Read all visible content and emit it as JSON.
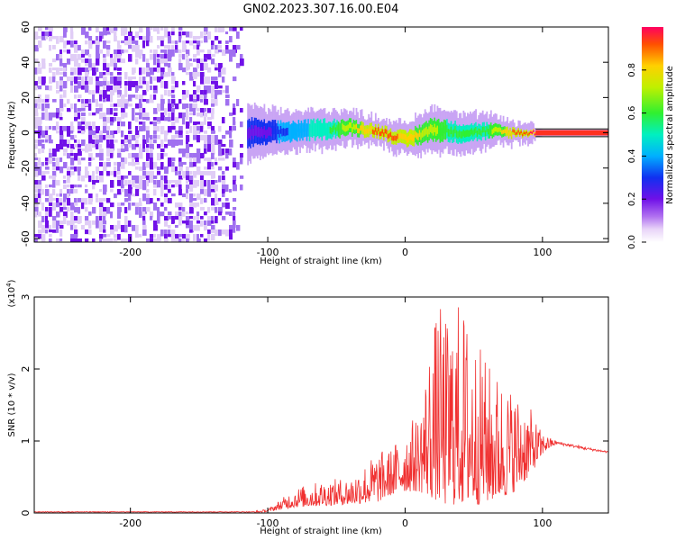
{
  "title": "GN02.2023.307.16.00.E04",
  "colors": {
    "spectrogram_scale": [
      "#ffffff",
      "#e8d4f8",
      "#a070f0",
      "#7010e8",
      "#1030f0",
      "#00b0ff",
      "#00f0c0",
      "#30f030",
      "#c0f000",
      "#ffd000",
      "#ff5000",
      "#ff0060"
    ],
    "snr_line": "#f03030"
  },
  "chart_data": [
    {
      "type": "heatmap",
      "xlabel": "Height of straight line (km)",
      "ylabel": "Frequency (Hz)",
      "xlim": [
        -270,
        148
      ],
      "ylim": [
        -62,
        60
      ],
      "xticks": [
        -200,
        -100,
        0,
        100
      ],
      "yticks": [
        60,
        40,
        20,
        0,
        -20,
        -40,
        -60
      ],
      "colorbar": {
        "label": "Normalized spectral amplitude",
        "range": [
          0.0,
          1.0
        ],
        "ticks": [
          "0.0",
          "0.2",
          "0.4",
          "0.6",
          "0.8"
        ]
      },
      "ridge": {
        "x": [
          -115,
          -100,
          -80,
          -60,
          -40,
          -20,
          0,
          20,
          40,
          60,
          80,
          100,
          148
        ],
        "y_center_hz": [
          0,
          0,
          1,
          2,
          3,
          1,
          -4,
          2,
          0,
          1,
          0,
          0,
          0
        ],
        "width_hz": [
          8,
          6,
          5,
          5,
          4,
          3,
          4,
          6,
          5,
          4,
          2,
          1,
          1
        ],
        "amplitude": [
          0.25,
          0.3,
          0.45,
          0.55,
          0.75,
          0.9,
          0.85,
          0.7,
          0.6,
          0.65,
          0.9,
          1.0,
          1.0
        ]
      },
      "noise_region": {
        "x": [
          -270,
          -115
        ],
        "amplitude": 0.1
      }
    },
    {
      "type": "line",
      "xlabel": "Height of straight line (km)",
      "ylabel": "SNR (10 * v/v)",
      "multiplier_label": "(x10",
      "multiplier_exp": "4",
      "multiplier_close": ")",
      "xlim": [
        -270,
        148
      ],
      "ylim": [
        0,
        3
      ],
      "xticks": [
        -200,
        -100,
        0,
        100
      ],
      "yticks": [
        0,
        1,
        2,
        3
      ],
      "envelope": {
        "x": [
          -270,
          -110,
          -100,
          -90,
          -80,
          -60,
          -40,
          -20,
          -10,
          0,
          10,
          20,
          25,
          30,
          40,
          50,
          60,
          70,
          80,
          90,
          100,
          110,
          120,
          130,
          148
        ],
        "y_min": [
          0,
          0,
          0.02,
          0.05,
          0.08,
          0.1,
          0.12,
          0.15,
          0.25,
          0.3,
          0.3,
          0.2,
          0.15,
          0.1,
          0.12,
          0.1,
          0.15,
          0.2,
          0.3,
          0.5,
          0.8,
          0.95,
          0.92,
          0.88,
          0.83
        ],
        "y_max": [
          0.02,
          0.03,
          0.05,
          0.2,
          0.35,
          0.45,
          0.5,
          0.85,
          0.9,
          1.2,
          1.4,
          2.6,
          2.9,
          2.7,
          3.0,
          2.5,
          2.1,
          1.9,
          1.7,
          1.5,
          1.1,
          1.0,
          0.96,
          0.92,
          0.86
        ]
      }
    }
  ]
}
